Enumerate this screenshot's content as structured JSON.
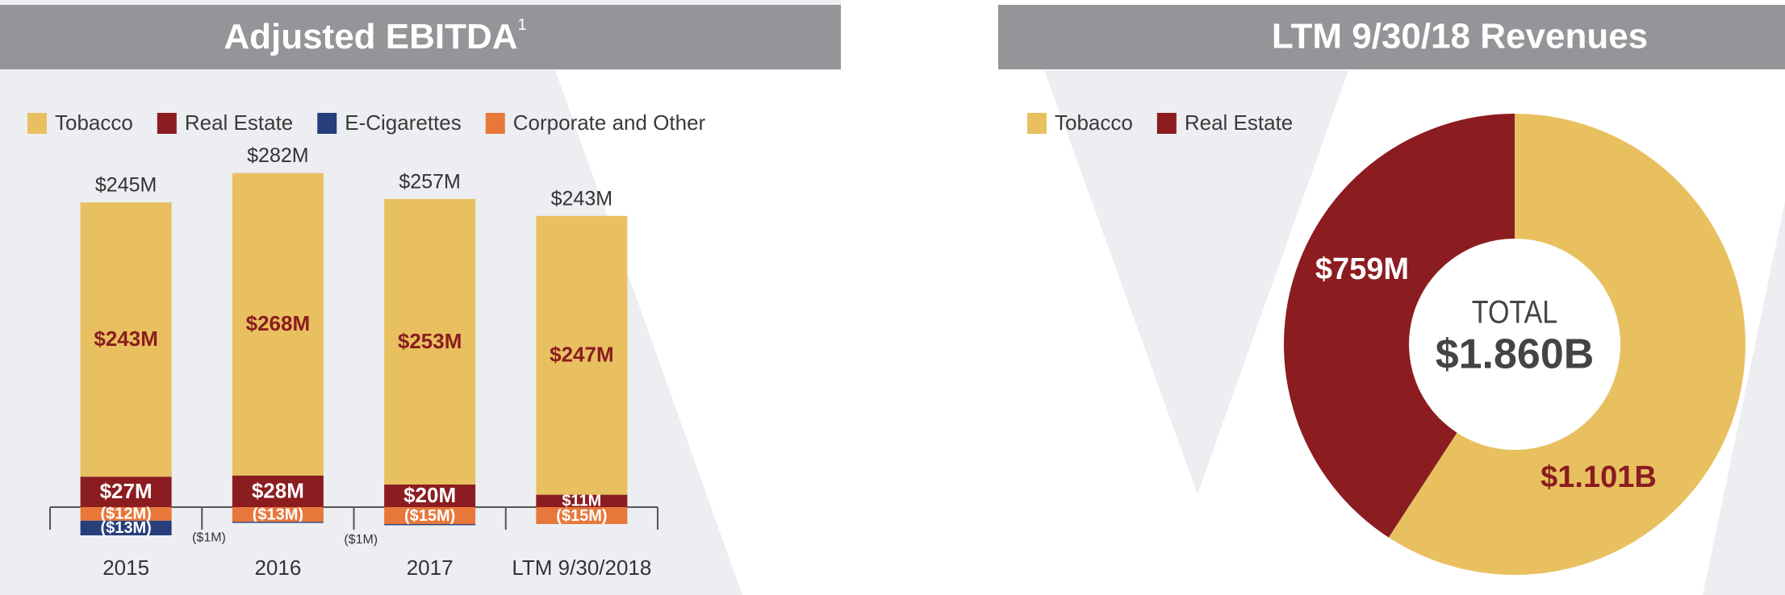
{
  "chart_data": [
    {
      "type": "bar",
      "title": "Adjusted EBITDA",
      "title_note": "1",
      "categories": [
        "2015",
        "2016",
        "2017",
        "LTM 9/30/2018"
      ],
      "series": [
        {
          "name": "Tobacco",
          "color": "#e8c060",
          "values": [
            243,
            268,
            253,
            247
          ],
          "value_labels": [
            "$243M",
            "$268M",
            "$253M",
            "$247M"
          ]
        },
        {
          "name": "Real Estate",
          "color": "#8b1c20",
          "values": [
            27,
            28,
            20,
            11
          ],
          "value_labels": [
            "$27M",
            "$28M",
            "$20M",
            "$11M"
          ]
        },
        {
          "name": "E-Cigarettes",
          "color": "#263f7a",
          "values": [
            -13,
            -1,
            -1,
            null
          ],
          "value_labels": [
            "($13M)",
            "($1M)",
            "($1M)",
            null
          ]
        },
        {
          "name": "Corporate and Other",
          "color": "#e8773a",
          "values": [
            -12,
            -13,
            -15,
            -15
          ],
          "value_labels": [
            "($12M)",
            "($13M)",
            "($15M)",
            "($15M)"
          ]
        }
      ],
      "totals": [
        245,
        282,
        257,
        243
      ],
      "total_labels": [
        "$245M",
        "$282M",
        "$257M",
        "$243M"
      ]
    },
    {
      "type": "pie",
      "title": "LTM 9/30/18 Revenues",
      "categories": [
        "Tobacco",
        "Real Estate"
      ],
      "values": [
        1101,
        759
      ],
      "value_labels": [
        "$1.101B",
        "$759M"
      ],
      "colors": [
        "#e8c060",
        "#8b1c20"
      ],
      "center_label": "TOTAL",
      "total": 1860,
      "total_label": "$1.860B"
    }
  ]
}
